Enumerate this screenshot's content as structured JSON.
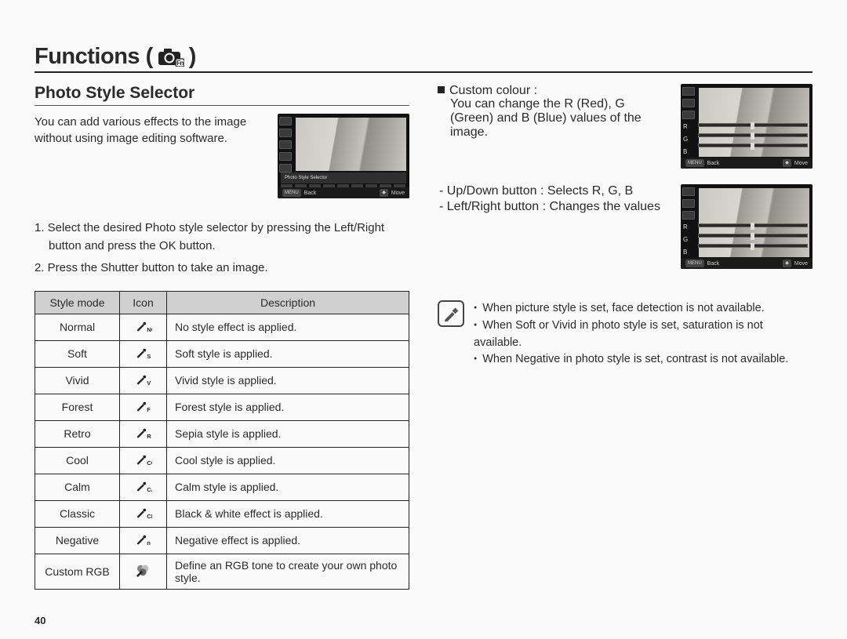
{
  "page": {
    "title_prefix": "Functions (",
    "title_suffix": " )",
    "number": "40"
  },
  "left": {
    "section_title": "Photo Style Selector",
    "intro": "You can add various effects to the image without using image editing software.",
    "steps": [
      "1. Select the desired Photo style selector by pressing the Left/Right button and press the OK button.",
      "2. Press the Shutter button to take an image."
    ],
    "thumb": {
      "strip_label": "Photo Style Selector",
      "footer_back_key": "MENU",
      "footer_back": "Back",
      "footer_move_key": "◆",
      "footer_move": "Move"
    },
    "table": {
      "headers": [
        "Style mode",
        "Icon",
        "Description"
      ],
      "rows": [
        {
          "mode": "Normal",
          "icon_sub": "NOR",
          "desc": "No style effect is applied."
        },
        {
          "mode": "Soft",
          "icon_sub": "S",
          "desc": "Soft style is applied."
        },
        {
          "mode": "Vivid",
          "icon_sub": "V",
          "desc": "Vivid style is applied."
        },
        {
          "mode": "Forest",
          "icon_sub": "F",
          "desc": "Forest style is applied."
        },
        {
          "mode": "Retro",
          "icon_sub": "R",
          "desc": "Sepia style is applied."
        },
        {
          "mode": "Cool",
          "icon_sub": "CO",
          "desc": "Cool style is applied."
        },
        {
          "mode": "Calm",
          "icon_sub": "CA",
          "desc": "Calm style is applied."
        },
        {
          "mode": "Classic",
          "icon_sub": "CL",
          "desc": "Black & white effect is applied."
        },
        {
          "mode": "Negative",
          "icon_sub": "n",
          "desc": "Negative effect is applied."
        },
        {
          "mode": "Custom RGB",
          "icon_sub": "rgb",
          "desc": "Define an RGB tone to create your own photo style."
        }
      ]
    }
  },
  "right": {
    "custom_colour_label": "Custom colour : ",
    "custom_colour_desc": "You can change the R (Red), G (Green) and B (Blue) values of the image.",
    "buttons": [
      "- Up/Down button : Selects R, G, B",
      "- Left/Right button : Changes the values"
    ],
    "slider_labels": [
      "R",
      "G",
      "B"
    ],
    "thumb_footer": {
      "back_key": "MENU",
      "back": "Back",
      "move_key": "◆",
      "move": "Move"
    },
    "notes": [
      "When picture style is set, face detection is not available.",
      "When Soft or Vivid in photo style is set, saturation is not available.",
      "When Negative in photo style is set, contrast is not available."
    ]
  },
  "colors": {
    "text": "#2a2a2a",
    "rule": "#222222",
    "table_header_bg": "#d0d0d0"
  }
}
